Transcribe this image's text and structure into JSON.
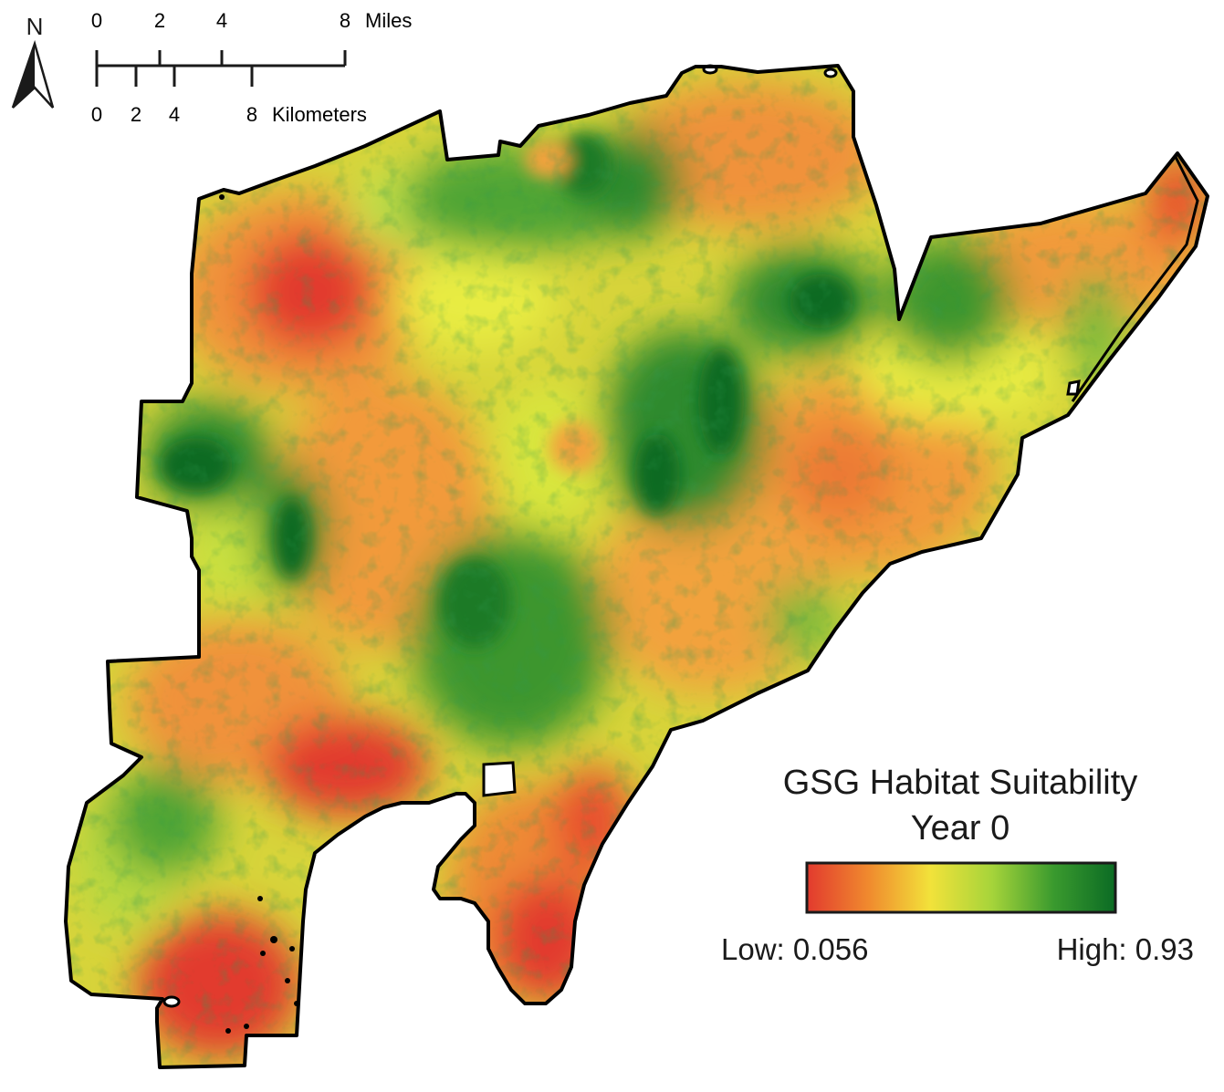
{
  "north_arrow": {
    "label": "N"
  },
  "scale_bar": {
    "miles": {
      "ticks": [
        "0",
        "2",
        "4",
        "8"
      ],
      "unit": "Miles"
    },
    "kilometers": {
      "ticks": [
        "0",
        "2",
        "4",
        "8"
      ],
      "unit": "Kilometers"
    }
  },
  "legend": {
    "title_line1": "GSG Habitat Suitability",
    "title_line2": "Year 0",
    "low_label": "Low: 0.056",
    "high_label": "High: 0.93",
    "gradient_colors": [
      "#e23a2e",
      "#f08a2e",
      "#f2e23a",
      "#a6d43a",
      "#3a9a2e",
      "#0b6b24"
    ]
  },
  "map": {
    "outline_color": "#000000",
    "suitability_low_color": "#e23a2e",
    "suitability_high_color": "#0b6b24"
  }
}
